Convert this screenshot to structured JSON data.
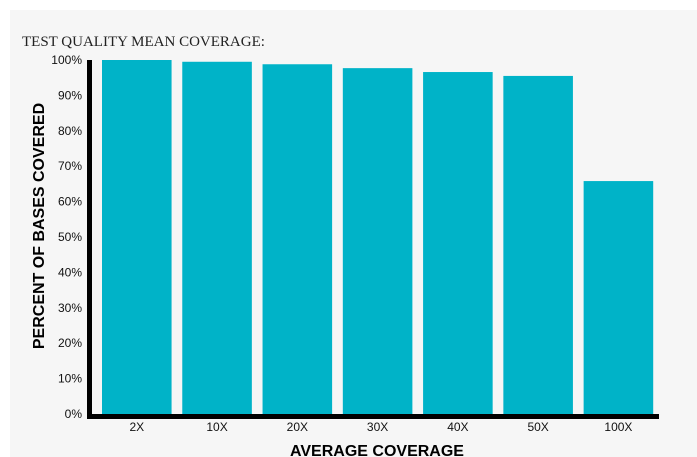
{
  "chart_data": {
    "type": "bar",
    "title": "TEST QUALITY MEAN COVERAGE:",
    "xlabel": "AVERAGE COVERAGE",
    "ylabel": "PERCENT OF BASES COVERED",
    "categories": [
      "2X",
      "10X",
      "20X",
      "30X",
      "40X",
      "50X",
      "100X"
    ],
    "values": [
      100,
      99.5,
      98.8,
      97.7,
      96.6,
      95.5,
      65.8
    ],
    "ylim": [
      0,
      100
    ],
    "yticks": [
      "0%",
      "10%",
      "20%",
      "30%",
      "40%",
      "50%",
      "60%",
      "70%",
      "80%",
      "90%",
      "100%"
    ],
    "bar_color": "#00b3c8",
    "axis_color": "#000000",
    "grid": false
  }
}
